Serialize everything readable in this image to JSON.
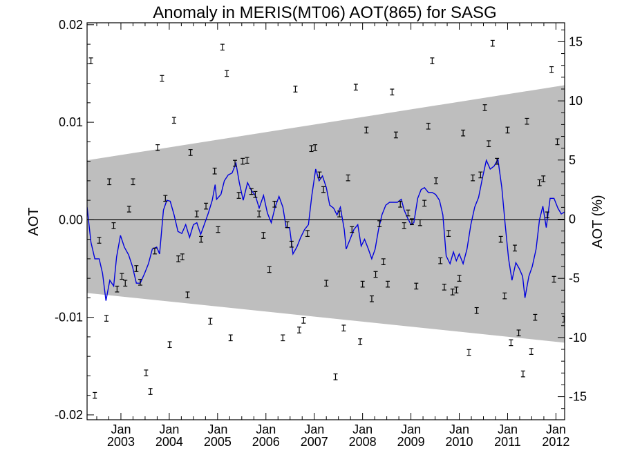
{
  "chart_data": {
    "type": "scatter",
    "title": "Anomaly in MERIS(MT06) AOT(865) for SASG",
    "ylabel_left": "AOT",
    "ylabel_right": "AOT (%)",
    "ylim": [
      -0.0205,
      0.0202
    ],
    "ylim_right": [
      -16.95,
      16.6
    ],
    "xlim": [
      2002.3,
      2012.18
    ],
    "left_ticks": [
      {
        "value": 0.02,
        "label": "0.02"
      },
      {
        "value": 0.01,
        "label": "0.01"
      },
      {
        "value": 0.0,
        "label": "0.00"
      },
      {
        "value": -0.01,
        "label": "-0.01"
      },
      {
        "value": -0.02,
        "label": "-0.02"
      }
    ],
    "right_ticks": [
      {
        "value": 15,
        "label": "15"
      },
      {
        "value": 10,
        "label": "10"
      },
      {
        "value": 5,
        "label": "5"
      },
      {
        "value": 0,
        "label": "0"
      },
      {
        "value": -5,
        "label": "-5"
      },
      {
        "value": -10,
        "label": "-10"
      },
      {
        "value": -15,
        "label": "-15"
      }
    ],
    "x_ticks": [
      {
        "value": 2003.0,
        "month": "Jan",
        "year": "2003"
      },
      {
        "value": 2004.0,
        "month": "Jan",
        "year": "2004"
      },
      {
        "value": 2005.0,
        "month": "Jan",
        "year": "2005"
      },
      {
        "value": 2006.0,
        "month": "Jan",
        "year": "2006"
      },
      {
        "value": 2007.0,
        "month": "Jan",
        "year": "2007"
      },
      {
        "value": 2008.0,
        "month": "Jan",
        "year": "2008"
      },
      {
        "value": 2009.0,
        "month": "Jan",
        "year": "2009"
      },
      {
        "value": 2010.0,
        "month": "Jan",
        "year": "2010"
      },
      {
        "value": 2011.0,
        "month": "Jan",
        "year": "2011"
      },
      {
        "value": 2012.0,
        "month": "Jan",
        "year": "2012"
      }
    ],
    "band": {
      "color": "#bebebe",
      "start": [
        2002.3,
        0.0061,
        -0.0075
      ],
      "end": [
        2012.18,
        0.0138,
        -0.0126
      ]
    },
    "zero_line": 0.0,
    "line_color": "#0000dd",
    "marker_color": "#000000",
    "error_half": 0.0003,
    "points": [
      [
        2002.38,
        0.0163
      ],
      [
        2002.46,
        -0.018
      ],
      [
        2002.55,
        -0.0021
      ],
      [
        2002.7,
        -0.0101
      ],
      [
        2002.76,
        0.0039
      ],
      [
        2002.85,
        -0.0006
      ],
      [
        2002.92,
        -0.0071
      ],
      [
        2003.02,
        -0.0058
      ],
      [
        2003.09,
        -0.0065
      ],
      [
        2003.17,
        0.0011
      ],
      [
        2003.25,
        0.0039
      ],
      [
        2003.32,
        -0.005
      ],
      [
        2003.4,
        -0.0064
      ],
      [
        2003.52,
        -0.0157
      ],
      [
        2003.61,
        -0.0176
      ],
      [
        2003.7,
        -0.0032
      ],
      [
        2003.76,
        0.0074
      ],
      [
        2003.85,
        0.0145
      ],
      [
        2003.92,
        0.0022
      ],
      [
        2004.01,
        -0.0128
      ],
      [
        2004.1,
        0.0102
      ],
      [
        2004.19,
        -0.004
      ],
      [
        2004.27,
        -0.0038
      ],
      [
        2004.38,
        -0.0077
      ],
      [
        2004.44,
        0.0069
      ],
      [
        2004.57,
        0.0006
      ],
      [
        2004.66,
        -0.002
      ],
      [
        2004.76,
        0.0014
      ],
      [
        2004.85,
        -0.0104
      ],
      [
        2004.94,
        0.005
      ],
      [
        2005.01,
        -0.001
      ],
      [
        2005.1,
        0.0177
      ],
      [
        2005.19,
        0.015
      ],
      [
        2005.27,
        -0.0121
      ],
      [
        2005.36,
        0.0058
      ],
      [
        2005.44,
        0.0025
      ],
      [
        2005.52,
        0.006
      ],
      [
        2005.61,
        0.0061
      ],
      [
        2005.7,
        0.0029
      ],
      [
        2005.78,
        0.0026
      ],
      [
        2005.86,
        0.0006
      ],
      [
        2005.95,
        -0.0016
      ],
      [
        2006.07,
        -0.0051
      ],
      [
        2006.18,
        0.0016
      ],
      [
        2006.35,
        -0.0121
      ],
      [
        2006.44,
        -0.0005
      ],
      [
        2006.53,
        -0.0025
      ],
      [
        2006.61,
        0.0134
      ],
      [
        2006.69,
        -0.0113
      ],
      [
        2006.78,
        -0.0103
      ],
      [
        2006.86,
        -0.0014
      ],
      [
        2006.94,
        0.0073
      ],
      [
        2007.02,
        0.0074
      ],
      [
        2007.11,
        0.0046
      ],
      [
        2007.19,
        0.0031
      ],
      [
        2007.25,
        -0.0065
      ],
      [
        2007.44,
        -0.0161
      ],
      [
        2007.52,
        0.0006
      ],
      [
        2007.61,
        -0.0111
      ],
      [
        2007.7,
        0.0043
      ],
      [
        2007.78,
        -0.001
      ],
      [
        2007.86,
        0.0136
      ],
      [
        2007.95,
        -0.0125
      ],
      [
        2008.0,
        -0.0066
      ],
      [
        2008.08,
        0.0092
      ],
      [
        2008.19,
        -0.0081
      ],
      [
        2008.27,
        -0.0056
      ],
      [
        2008.35,
        -0.0004
      ],
      [
        2008.43,
        -0.0043
      ],
      [
        2008.52,
        -0.0066
      ],
      [
        2008.61,
        0.0131
      ],
      [
        2008.69,
        0.0087
      ],
      [
        2008.78,
        0.0016
      ],
      [
        2008.86,
        -0.0006
      ],
      [
        2008.94,
        0.0007
      ],
      [
        2009.02,
        -0.0002
      ],
      [
        2009.11,
        -0.0068
      ],
      [
        2009.19,
        -0.0003
      ],
      [
        2009.28,
        0.0017
      ],
      [
        2009.36,
        0.0096
      ],
      [
        2009.44,
        0.0163
      ],
      [
        2009.52,
        0.004
      ],
      [
        2009.61,
        -0.0042
      ],
      [
        2009.69,
        -0.0069
      ],
      [
        2009.78,
        -0.0014
      ],
      [
        2009.86,
        -0.0074
      ],
      [
        2009.94,
        -0.0072
      ],
      [
        2010.0,
        -0.006
      ],
      [
        2010.08,
        0.0089
      ],
      [
        2010.2,
        -0.0136
      ],
      [
        2010.28,
        0.0043
      ],
      [
        2010.36,
        -0.0093
      ],
      [
        2010.44,
        0.0046
      ],
      [
        2010.53,
        0.0115
      ],
      [
        2010.61,
        0.0078
      ],
      [
        2010.69,
        0.0181
      ],
      [
        2010.78,
        0.006
      ],
      [
        2010.86,
        -0.002
      ],
      [
        2010.94,
        -0.0078
      ],
      [
        2011.0,
        0.0092
      ],
      [
        2011.07,
        -0.0126
      ],
      [
        2011.15,
        -0.0029
      ],
      [
        2011.23,
        -0.0116
      ],
      [
        2011.32,
        -0.0158
      ],
      [
        2011.4,
        0.0101
      ],
      [
        2011.49,
        -0.0135
      ],
      [
        2011.57,
        -0.01
      ],
      [
        2011.66,
        0.0038
      ],
      [
        2011.74,
        0.0042
      ],
      [
        2011.82,
        0.0005
      ],
      [
        2011.91,
        0.0154
      ],
      [
        2011.96,
        -0.0061
      ],
      [
        2012.03,
        0.008
      ],
      [
        2012.17,
        -0.0102
      ]
    ],
    "line": [
      [
        2002.3,
        0.0013
      ],
      [
        2002.38,
        -0.0023
      ],
      [
        2002.46,
        -0.004
      ],
      [
        2002.55,
        -0.004
      ],
      [
        2002.62,
        -0.0055
      ],
      [
        2002.69,
        -0.0083
      ],
      [
        2002.77,
        -0.0062
      ],
      [
        2002.85,
        -0.0068
      ],
      [
        2002.91,
        -0.0038
      ],
      [
        2002.99,
        -0.0016
      ],
      [
        2003.07,
        -0.0028
      ],
      [
        2003.16,
        -0.0036
      ],
      [
        2003.24,
        -0.0048
      ],
      [
        2003.32,
        -0.0065
      ],
      [
        2003.4,
        -0.0065
      ],
      [
        2003.49,
        -0.0055
      ],
      [
        2003.57,
        -0.0045
      ],
      [
        2003.65,
        -0.003
      ],
      [
        2003.74,
        -0.0028
      ],
      [
        2003.8,
        -0.0035
      ],
      [
        2003.88,
        0.001
      ],
      [
        2003.95,
        0.002
      ],
      [
        2004.02,
        0.0019
      ],
      [
        2004.1,
        0.0005
      ],
      [
        2004.18,
        -0.0012
      ],
      [
        2004.26,
        -0.0014
      ],
      [
        2004.34,
        -0.0005
      ],
      [
        2004.42,
        -0.0018
      ],
      [
        2004.5,
        -0.0005
      ],
      [
        2004.57,
        -0.0003
      ],
      [
        2004.65,
        -0.0015
      ],
      [
        2004.73,
        -0.0004
      ],
      [
        2004.81,
        0.0007
      ],
      [
        2004.89,
        0.002
      ],
      [
        2004.95,
        0.0036
      ],
      [
        2004.98,
        0.0021
      ],
      [
        2005.07,
        0.0026
      ],
      [
        2005.14,
        0.004
      ],
      [
        2005.22,
        0.0046
      ],
      [
        2005.3,
        0.0048
      ],
      [
        2005.38,
        0.0058
      ],
      [
        2005.45,
        0.0038
      ],
      [
        2005.53,
        0.002
      ],
      [
        2005.62,
        0.0038
      ],
      [
        2005.7,
        0.003
      ],
      [
        2005.78,
        0.0025
      ],
      [
        2005.86,
        0.0012
      ],
      [
        2005.95,
        0.0025
      ],
      [
        2006.03,
        0.0007
      ],
      [
        2006.11,
        -0.0003
      ],
      [
        2006.19,
        0.0013
      ],
      [
        2006.27,
        0.0024
      ],
      [
        2006.35,
        0.0013
      ],
      [
        2006.42,
        -0.0008
      ],
      [
        2006.49,
        -0.0008
      ],
      [
        2006.56,
        -0.0035
      ],
      [
        2006.64,
        -0.0028
      ],
      [
        2006.72,
        -0.0018
      ],
      [
        2006.8,
        -0.001
      ],
      [
        2006.88,
        -0.0005
      ],
      [
        2006.95,
        0.0025
      ],
      [
        2007.03,
        0.0052
      ],
      [
        2007.1,
        0.004
      ],
      [
        2007.17,
        0.0045
      ],
      [
        2007.25,
        0.0033
      ],
      [
        2007.32,
        0.0015
      ],
      [
        2007.4,
        0.0012
      ],
      [
        2007.47,
        0.0005
      ],
      [
        2007.54,
        0.0013
      ],
      [
        2007.62,
        -0.001
      ],
      [
        2007.66,
        -0.003
      ],
      [
        2007.74,
        -0.002
      ],
      [
        2007.82,
        -0.001
      ],
      [
        2007.9,
        -0.0005
      ],
      [
        2007.97,
        -0.0027
      ],
      [
        2008.04,
        -0.002
      ],
      [
        2008.12,
        -0.003
      ],
      [
        2008.19,
        -0.004
      ],
      [
        2008.26,
        -0.003
      ],
      [
        2008.33,
        -0.001
      ],
      [
        2008.4,
        0.0005
      ],
      [
        2008.48,
        0.0015
      ],
      [
        2008.56,
        0.0018
      ],
      [
        2008.64,
        0.0018
      ],
      [
        2008.72,
        0.0018
      ],
      [
        2008.8,
        0.0021
      ],
      [
        2008.86,
        0.001
      ],
      [
        2008.93,
        0.0002
      ],
      [
        2009.0,
        -0.0005
      ],
      [
        2009.06,
        -0.0003
      ],
      [
        2009.14,
        0.0022
      ],
      [
        2009.21,
        0.0031
      ],
      [
        2009.28,
        0.0033
      ],
      [
        2009.36,
        0.0028
      ],
      [
        2009.44,
        0.0028
      ],
      [
        2009.51,
        0.0026
      ],
      [
        2009.59,
        0.002
      ],
      [
        2009.66,
        0.0005
      ],
      [
        2009.73,
        -0.0037
      ],
      [
        2009.81,
        -0.0045
      ],
      [
        2009.88,
        -0.0033
      ],
      [
        2009.94,
        -0.0042
      ],
      [
        2010.0,
        -0.0035
      ],
      [
        2010.08,
        -0.0045
      ],
      [
        2010.16,
        -0.003
      ],
      [
        2010.24,
        -0.0005
      ],
      [
        2010.32,
        0.0013
      ],
      [
        2010.4,
        0.0023
      ],
      [
        2010.48,
        0.0043
      ],
      [
        2010.56,
        0.0061
      ],
      [
        2010.64,
        0.0052
      ],
      [
        2010.72,
        0.0055
      ],
      [
        2010.8,
        0.0062
      ],
      [
        2010.88,
        0.0033
      ],
      [
        2010.95,
        -0.0005
      ],
      [
        2011.02,
        -0.004
      ],
      [
        2011.09,
        -0.0062
      ],
      [
        2011.17,
        -0.0044
      ],
      [
        2011.24,
        -0.005
      ],
      [
        2011.31,
        -0.0058
      ],
      [
        2011.36,
        -0.008
      ],
      [
        2011.44,
        -0.0058
      ],
      [
        2011.51,
        -0.0048
      ],
      [
        2011.59,
        -0.003
      ],
      [
        2011.66,
        0.0
      ],
      [
        2011.73,
        0.0014
      ],
      [
        2011.8,
        -0.0008
      ],
      [
        2011.88,
        0.0022
      ],
      [
        2011.96,
        0.0022
      ],
      [
        2012.04,
        0.0012
      ],
      [
        2012.11,
        0.0006
      ],
      [
        2012.18,
        0.0008
      ]
    ]
  }
}
